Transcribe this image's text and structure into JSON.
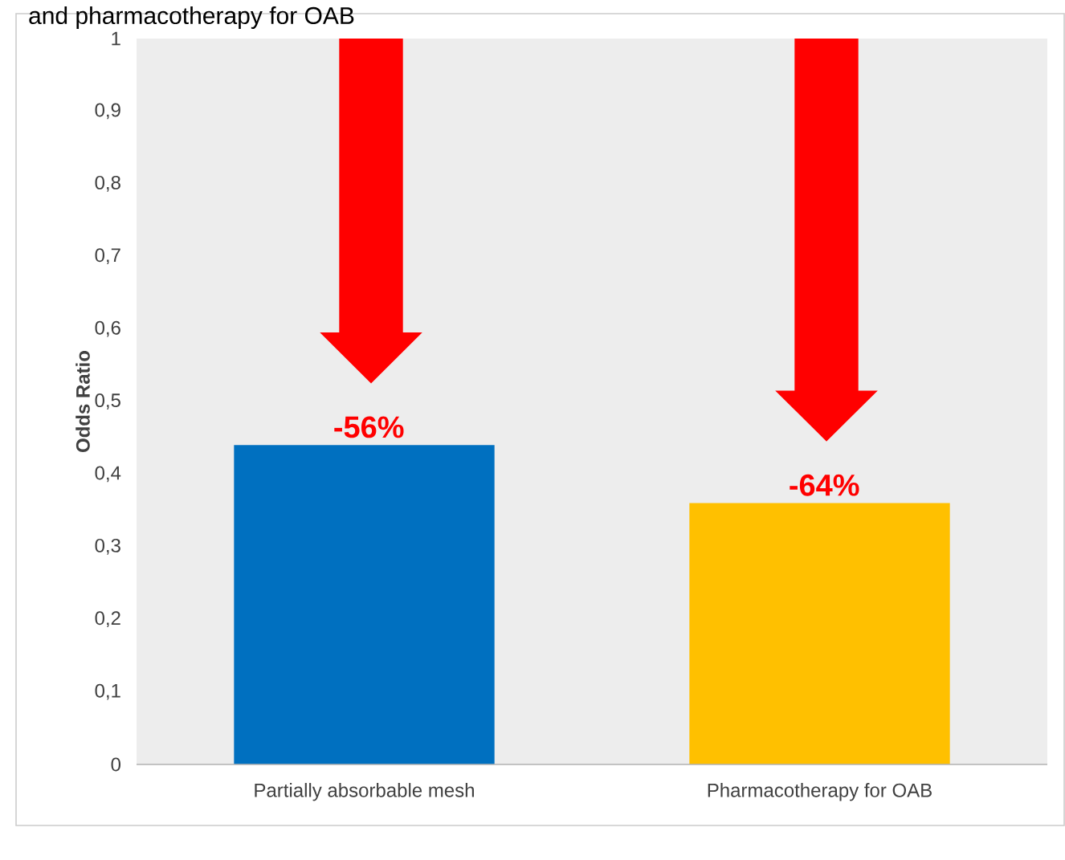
{
  "chart_data": {
    "type": "bar",
    "title": "and pharmacotherapy for OAB",
    "ylabel": "Odds Ratio",
    "categories": [
      "Partially absorbable mesh",
      "Pharmacotherapy for OAB"
    ],
    "values": [
      0.44,
      0.36
    ],
    "colors": [
      "#0070c0",
      "#ffc000"
    ],
    "ylim": [
      0,
      1
    ],
    "yticks": [
      0,
      {
        "value": 0.1,
        "label": "0,1"
      },
      {
        "value": 0.2,
        "label": "0,2"
      },
      {
        "value": 0.3,
        "label": "0,3"
      },
      {
        "value": 0.4,
        "label": "0,4"
      },
      {
        "value": 0.5,
        "label": "0,5"
      },
      {
        "value": 0.6,
        "label": "0,6"
      },
      {
        "value": 0.7,
        "label": "0,7"
      },
      {
        "value": 0.8,
        "label": "0,8"
      },
      {
        "value": 0.9,
        "label": "0,9"
      },
      1
    ],
    "annotations": [
      {
        "text": "-56%",
        "x": "Partially absorbable mesh",
        "y": 0.44
      },
      {
        "text": "-64%",
        "x": "Pharmacotherapy for OAB",
        "y": 0.36
      }
    ]
  }
}
